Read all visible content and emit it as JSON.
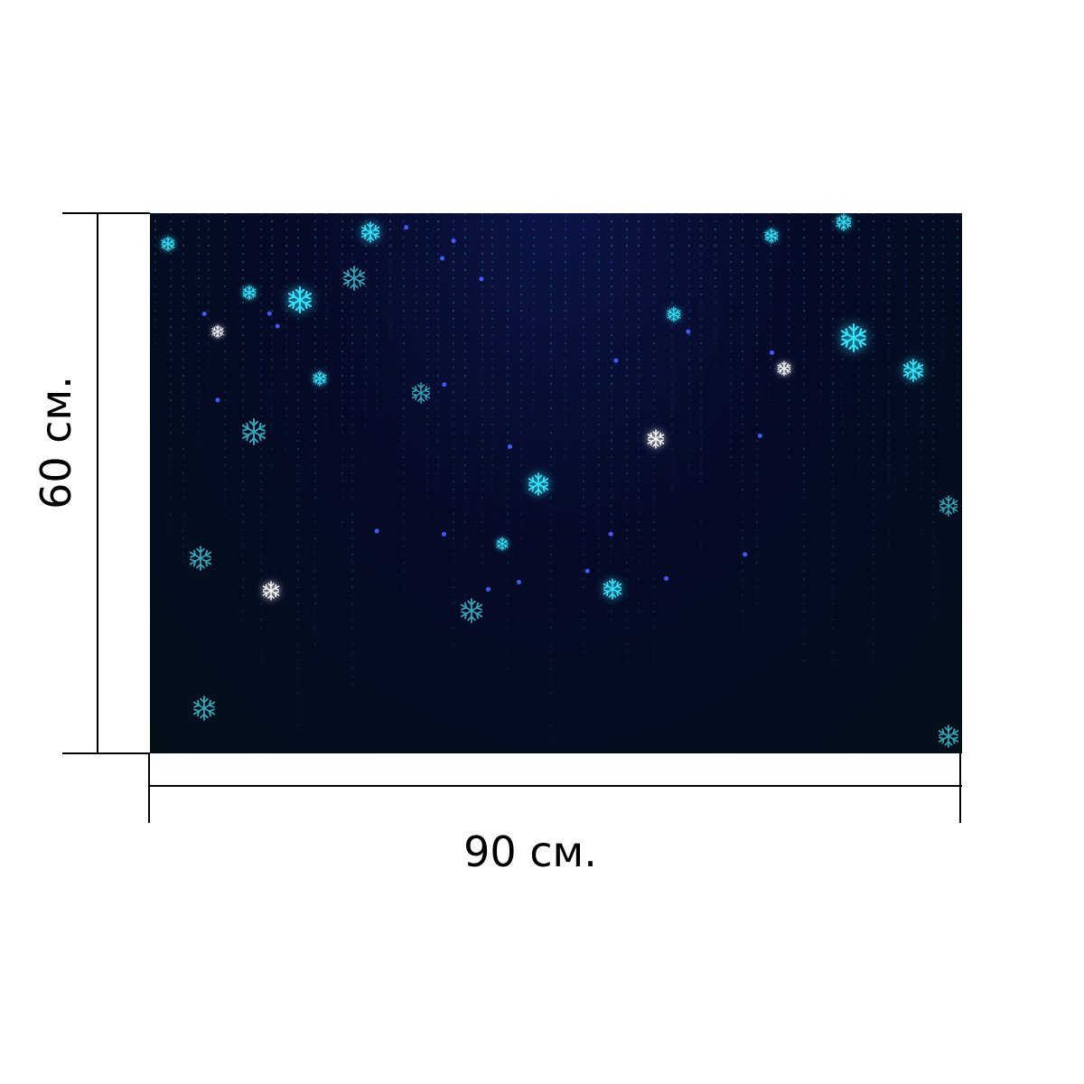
{
  "dimensions": {
    "height_label": "60 см.",
    "width_label": "90 см."
  },
  "image": {
    "subject": "snowflakes-on-dark-blue",
    "colors": {
      "background_top": "#0b1446",
      "background_bottom": "#03101a",
      "snow_cyan": "#33e6ff",
      "snow_blue": "#3c5cff",
      "snow_white": "#ffffff"
    }
  }
}
